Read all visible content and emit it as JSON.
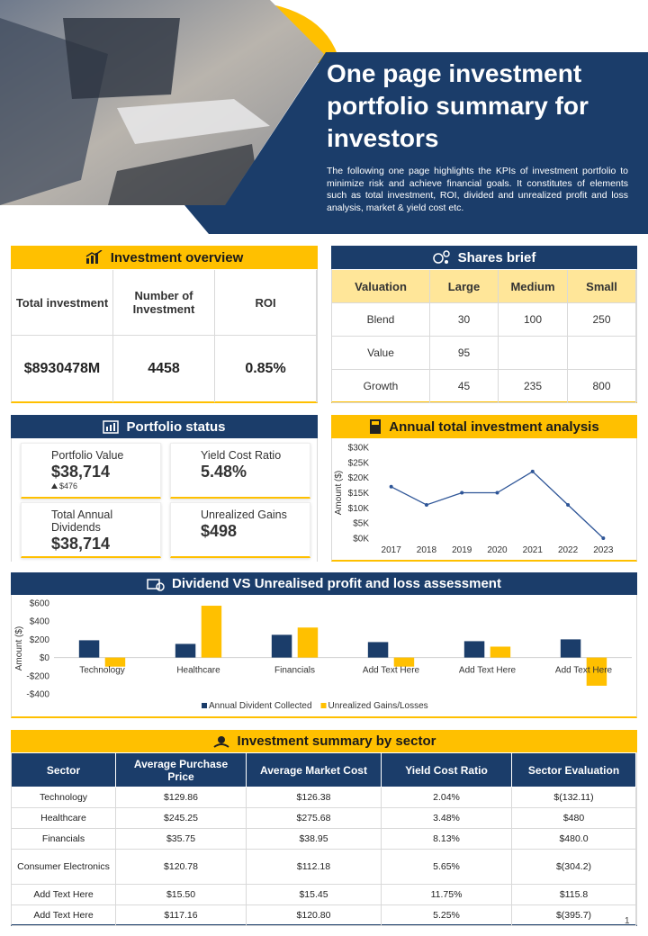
{
  "header": {
    "title": "One page investment portfolio summary for investors",
    "description": "The following one page highlights the KPIs of investment portfolio to minimize risk and achieve financial goals. It constitutes of elements such as total investment, ROI, divided and unrealized profit and loss analysis, market & yield cost etc."
  },
  "investment_overview": {
    "title": "Investment overview",
    "headers": [
      "Total investment",
      "Number of Investment",
      "ROI"
    ],
    "values": [
      "$8930478M",
      "4458",
      "0.85%"
    ]
  },
  "shares_brief": {
    "title": "Shares brief",
    "columns": [
      "Valuation",
      "Large",
      "Medium",
      "Small"
    ],
    "rows": [
      [
        "Blend",
        30,
        100,
        250
      ],
      [
        "Value",
        95,
        null,
        null
      ],
      [
        "Growth",
        45,
        235,
        800
      ]
    ]
  },
  "portfolio_status": {
    "title": "Portfolio status",
    "items": [
      {
        "label": "Portfolio Value",
        "value": "$38,714",
        "sub": "$476"
      },
      {
        "label": "Yield Cost Ratio",
        "value": "5.48%"
      },
      {
        "label": "Total Annual Dividends",
        "value": "$38,714"
      },
      {
        "label": "Unrealized Gains",
        "value": "$498"
      }
    ]
  },
  "chart_data": [
    {
      "type": "line",
      "title": "Annual total investment analysis",
      "y_label": "Amount ($)",
      "categories": [
        "2017",
        "2018",
        "2019",
        "2020",
        "2021",
        "2022",
        "2023"
      ],
      "values": [
        17000,
        11000,
        15000,
        15000,
        22000,
        11000,
        0
      ],
      "color": "#2e5597",
      "ylim": [
        0,
        30000
      ],
      "yticks": [
        {
          "value": 0,
          "label": "$0K"
        },
        {
          "value": 5000,
          "label": "$5K"
        },
        {
          "value": 10000,
          "label": "$10K"
        },
        {
          "value": 15000,
          "label": "$15K"
        },
        {
          "value": 20000,
          "label": "$20K"
        },
        {
          "value": 25000,
          "label": "$25K"
        },
        {
          "value": 30000,
          "label": "$30K"
        }
      ],
      "grid": false
    },
    {
      "type": "bar",
      "title": "Dividend VS Unrealised profit and loss assessment",
      "y_label": "Amount ($)",
      "categories": [
        "Technology",
        "Healthcare",
        "Financials",
        "Add Text Here",
        "Add Text Here",
        "Add Text Here"
      ],
      "series": [
        {
          "name": "Annual Divident Collected",
          "color": "#1b3d6a",
          "values": [
            190,
            150,
            250,
            170,
            180,
            200
          ]
        },
        {
          "name": "Unrealized Gains/Losses",
          "color": "#ffc000",
          "values": [
            -100,
            570,
            330,
            -100,
            120,
            -310
          ]
        }
      ],
      "ylim": [
        -400,
        600
      ],
      "yticks": [
        {
          "value": -400,
          "label": "-$400"
        },
        {
          "value": -200,
          "label": "-$200"
        },
        {
          "value": 0,
          "label": "$0"
        },
        {
          "value": 200,
          "label": "$200"
        },
        {
          "value": 400,
          "label": "$400"
        },
        {
          "value": 600,
          "label": "$600"
        }
      ],
      "grid": false,
      "legend": "bottom"
    }
  ],
  "sector_summary": {
    "title": "Investment summary by sector",
    "columns": [
      "Sector",
      "Average Purchase Price",
      "Average Market Cost",
      "Yield Cost Ratio",
      "Sector Evaluation"
    ],
    "rows": [
      [
        "Technology",
        "$129.86",
        "$126.38",
        "2.04%",
        "$(132.11)"
      ],
      [
        "Healthcare",
        "$245.25",
        "$275.68",
        "3.48%",
        "$480"
      ],
      [
        "Financials",
        "$35.75",
        "$38.95",
        "8.13%",
        "$480.0"
      ],
      [
        "Consumer Electronics",
        "$120.78",
        "$112.18",
        "5.65%",
        "$(304.2)"
      ],
      [
        "Add Text Here",
        "$15.50",
        "$15.45",
        "11.75%",
        "$115.8"
      ],
      [
        "Add Text Here",
        "$117.16",
        "$120.80",
        "5.25%",
        "$(395.7)"
      ]
    ]
  },
  "page_number": "1"
}
